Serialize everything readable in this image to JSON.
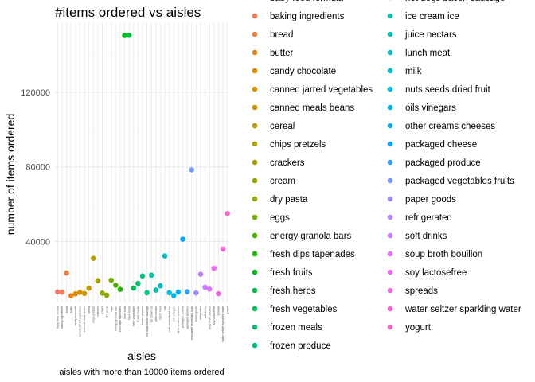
{
  "chart_data": {
    "type": "scatter",
    "title": "#items ordered vs aisles",
    "xlabel": "aisles",
    "ylabel": "number of items ordered",
    "caption": "aisles with more than 10000 items ordered",
    "ylim": [
      7000,
      157000
    ],
    "yticks": [
      40000,
      80000,
      120000
    ],
    "ytick_labels": [
      "40000",
      "80000",
      "120000"
    ],
    "grid": true,
    "legend_position": "right",
    "categories": [
      "baby food formula",
      "baking ingredients",
      "bread",
      "butter",
      "candy chocolate",
      "canned jarred vegetables",
      "canned meals beans",
      "cereal",
      "chips pretzels",
      "crackers",
      "cream",
      "dry pasta",
      "eggs",
      "energy granola bars",
      "fresh dips tapenades",
      "fresh fruits",
      "fresh herbs",
      "fresh vegetables",
      "frozen meals",
      "frozen produce",
      "hot dogs bacon sausage",
      "ice cream ice",
      "juice nectars",
      "lunch meat",
      "milk",
      "nuts seeds dried fruit",
      "oils vinegars",
      "other creams cheeses",
      "packaged cheese",
      "packaged produce",
      "packaged vegetables fruits",
      "paper goods",
      "refrigerated",
      "soft drinks",
      "soup broth bouillon",
      "soy lactosefree",
      "spreads",
      "water seltzer sparkling water",
      "yogurt"
    ],
    "values": [
      13000,
      12900,
      23200,
      11000,
      12000,
      12800,
      12200,
      15000,
      31000,
      19000,
      12400,
      11300,
      19300,
      16600,
      14400,
      150400,
      150500,
      15100,
      17600,
      21600,
      12600,
      22000,
      14000,
      16300,
      32300,
      12600,
      11100,
      13000,
      41300,
      13100,
      78400,
      12500,
      22500,
      15500,
      14500,
      25700,
      12100,
      36000,
      55000
    ],
    "colors": [
      "#F8766D",
      "#F37B59",
      "#ED8141",
      "#E7861B",
      "#DF8C00",
      "#D69100",
      "#CC9600",
      "#C19A00",
      "#B59F00",
      "#A8A300",
      "#9AA800",
      "#88AC00",
      "#72B000",
      "#55B300",
      "#1BB600",
      "#00B81D",
      "#00BA42",
      "#00BC59",
      "#00BE6D",
      "#00BF7F",
      "#00C091",
      "#00C0A1",
      "#00C0B1",
      "#00BFC0",
      "#00BDCE",
      "#00BBDB",
      "#00B6E7",
      "#00B0F2",
      "#00A9FC",
      "#2FA1FF",
      "#7698FF",
      "#9A8EFF",
      "#B584FF",
      "#CA7BFF",
      "#DC71FA",
      "#EA69F0",
      "#F564E3",
      "#FC61D5",
      "#FF61C5"
    ]
  }
}
